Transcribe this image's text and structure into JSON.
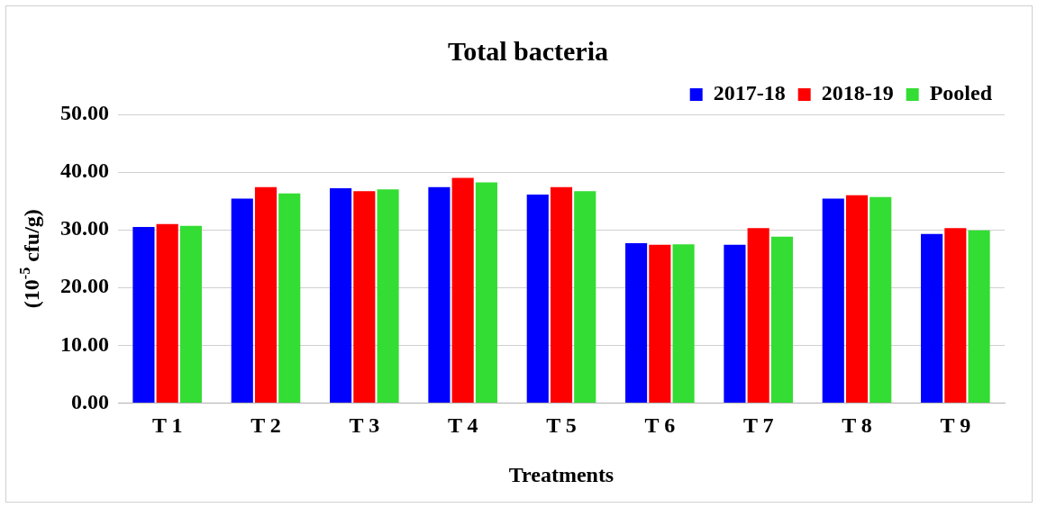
{
  "chart_data": {
    "type": "bar",
    "title": "Total bacteria",
    "xlabel": "Treatments",
    "ylabel": "(10$^{-5}$ cfu/g)",
    "categories": [
      "T 1",
      "T 2",
      "T 3",
      "T 4",
      "T 5",
      "T 6",
      "T 7",
      "T 8",
      "T 9"
    ],
    "series": [
      {
        "name": "2017-18",
        "color": "#0000ff",
        "values": [
          30.5,
          35.4,
          37.2,
          37.4,
          36.1,
          27.7,
          27.4,
          35.4,
          29.3
        ]
      },
      {
        "name": "2018-19",
        "color": "#ff0000",
        "values": [
          31.0,
          37.4,
          36.7,
          39.0,
          37.4,
          27.4,
          30.3,
          36.0,
          30.3
        ]
      },
      {
        "name": "Pooled",
        "color": "#33dd33",
        "values": [
          30.7,
          36.3,
          37.0,
          38.2,
          36.7,
          27.5,
          28.8,
          35.7,
          29.9
        ]
      }
    ],
    "ylim": [
      0,
      50
    ],
    "yticks": [
      {
        "value": 0,
        "label": "0.00"
      },
      {
        "value": 10,
        "label": "10.00"
      },
      {
        "value": 20,
        "label": "20.00"
      },
      {
        "value": 30,
        "label": "30.00"
      },
      {
        "value": 40,
        "label": "40.00"
      },
      {
        "value": 50,
        "label": "50.00"
      }
    ],
    "grid": "y",
    "legend": "top right"
  }
}
